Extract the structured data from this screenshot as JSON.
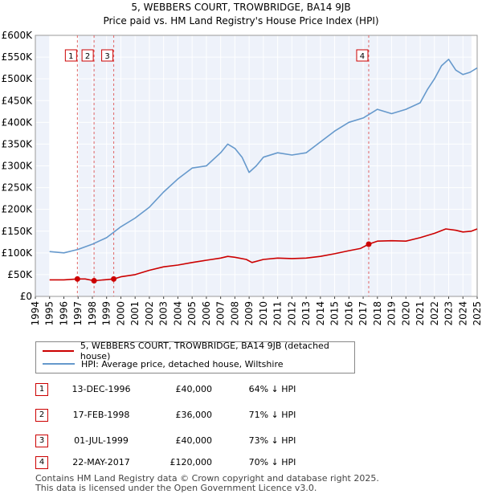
{
  "chart_data": {
    "type": "line",
    "title": "5, WEBBERS COURT, TROWBRIDGE, BA14 9JB",
    "subtitle": "Price paid vs. HM Land Registry's House Price Index (HPI)",
    "xlabel": "",
    "ylabel": "",
    "xlim": [
      1994,
      2025
    ],
    "ylim": [
      0,
      600000
    ],
    "grid": true,
    "x_ticks": [
      "1994",
      "1995",
      "1996",
      "1997",
      "1998",
      "1999",
      "2000",
      "2001",
      "2002",
      "2003",
      "2004",
      "2005",
      "2006",
      "2007",
      "2008",
      "2009",
      "2010",
      "2011",
      "2012",
      "2013",
      "2014",
      "2015",
      "2016",
      "2017",
      "2018",
      "2019",
      "2020",
      "2021",
      "2022",
      "2023",
      "2024",
      "2025"
    ],
    "y_ticks": [
      {
        "value": 0,
        "label": "£0"
      },
      {
        "value": 50000,
        "label": "£50K"
      },
      {
        "value": 100000,
        "label": "£100K"
      },
      {
        "value": 150000,
        "label": "£150K"
      },
      {
        "value": 200000,
        "label": "£200K"
      },
      {
        "value": 250000,
        "label": "£250K"
      },
      {
        "value": 300000,
        "label": "£300K"
      },
      {
        "value": 350000,
        "label": "£350K"
      },
      {
        "value": 400000,
        "label": "£400K"
      },
      {
        "value": 450000,
        "label": "£450K"
      },
      {
        "value": 500000,
        "label": "£500K"
      },
      {
        "value": 550000,
        "label": "£550K"
      },
      {
        "value": 600000,
        "label": "£600K"
      }
    ],
    "shaded_regions": [
      [
        1995,
        1996.95
      ],
      [
        2024.6,
        2025
      ]
    ],
    "series": [
      {
        "name": "5, WEBBERS COURT, TROWBRIDGE, BA14 9JB (detached house)",
        "color": "#cc0000",
        "x": [
          1995,
          1996,
          1996.95,
          1997.5,
          1998.12,
          1998.8,
          1999.5,
          2000,
          2001,
          2002,
          2003,
          2004,
          2005,
          2006,
          2007,
          2007.5,
          2008,
          2008.8,
          2009.2,
          2010,
          2011,
          2012,
          2013,
          2014,
          2015,
          2016,
          2016.8,
          2017.39,
          2018,
          2019,
          2020,
          2021,
          2022,
          2022.8,
          2023.5,
          2024,
          2024.6,
          2025
        ],
        "values": [
          38000,
          38000,
          40000,
          40000,
          36000,
          38000,
          40000,
          45000,
          50000,
          60000,
          68000,
          72000,
          78000,
          83000,
          88000,
          92000,
          90000,
          85000,
          78000,
          85000,
          88000,
          87000,
          88000,
          92000,
          98000,
          105000,
          110000,
          120000,
          127000,
          128000,
          127000,
          135000,
          145000,
          155000,
          152000,
          148000,
          150000,
          155000
        ]
      },
      {
        "name": "HPI: Average price, detached house, Wiltshire",
        "color": "#6699cc",
        "x": [
          1995,
          1996,
          1997,
          1998,
          1999,
          2000,
          2001,
          2002,
          2003,
          2004,
          2005,
          2006,
          2007,
          2007.5,
          2008,
          2008.5,
          2009,
          2009.5,
          2010,
          2011,
          2012,
          2013,
          2014,
          2015,
          2016,
          2017,
          2018,
          2019,
          2020,
          2021,
          2021.5,
          2022,
          2022.5,
          2023,
          2023.5,
          2024,
          2024.5,
          2025
        ],
        "values": [
          103000,
          100000,
          108000,
          120000,
          135000,
          160000,
          180000,
          205000,
          240000,
          270000,
          295000,
          300000,
          330000,
          350000,
          340000,
          320000,
          285000,
          300000,
          320000,
          330000,
          325000,
          330000,
          355000,
          380000,
          400000,
          410000,
          430000,
          420000,
          430000,
          445000,
          475000,
          500000,
          530000,
          545000,
          520000,
          510000,
          515000,
          525000
        ]
      }
    ],
    "markers": [
      {
        "id": "1",
        "x": 1996.95,
        "price": 40000
      },
      {
        "id": "2",
        "x": 1998.12,
        "price": 36000
      },
      {
        "id": "3",
        "x": 1999.5,
        "price": 40000
      },
      {
        "id": "4",
        "x": 2017.39,
        "price": 120000
      }
    ]
  },
  "transactions": [
    {
      "id": "1",
      "date": "13-DEC-1996",
      "price": "£40,000",
      "hpi": "64% ↓ HPI"
    },
    {
      "id": "2",
      "date": "17-FEB-1998",
      "price": "£36,000",
      "hpi": "71% ↓ HPI"
    },
    {
      "id": "3",
      "date": "01-JUL-1999",
      "price": "£40,000",
      "hpi": "73% ↓ HPI"
    },
    {
      "id": "4",
      "date": "22-MAY-2017",
      "price": "£120,000",
      "hpi": "70% ↓ HPI"
    }
  ],
  "footer": {
    "line1": "Contains HM Land Registry data © Crown copyright and database right 2025.",
    "line2": "This data is licensed under the Open Government Licence v3.0."
  }
}
